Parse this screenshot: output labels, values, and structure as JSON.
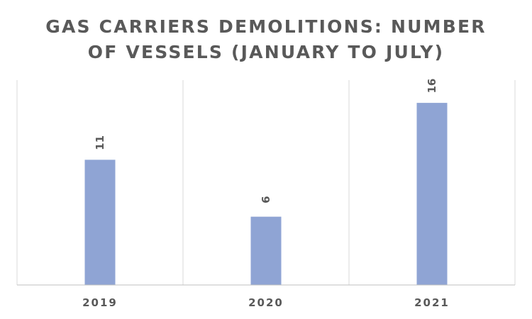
{
  "title_lines": [
    "GAS CARRIERS DEMOLITIONS: NUMBER",
    "OF VESSELS (JANUARY TO JULY)"
  ],
  "colors": {
    "bar": "#8FA4D4",
    "grid": "#d9d9d9",
    "axis": "#bfbfbf",
    "text": "#595959"
  },
  "chart_data": {
    "type": "bar",
    "title": "GAS CARRIERS DEMOLITIONS: NUMBER OF VESSELS (JANUARY TO JULY)",
    "categories": [
      "2019",
      "2020",
      "2021"
    ],
    "values": [
      11,
      6,
      16
    ],
    "data_labels": [
      "11",
      "6",
      "16"
    ],
    "xlabel": "",
    "ylabel": "",
    "ylim": [
      0,
      18
    ],
    "grid": "vertical category separators only",
    "legend": "none"
  }
}
